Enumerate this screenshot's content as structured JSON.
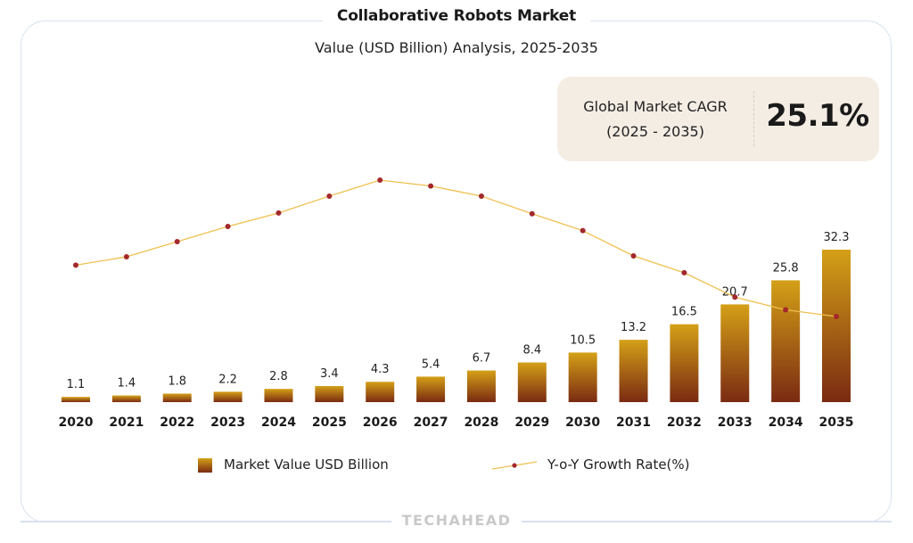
{
  "header": {
    "title": "Collaborative Robots Market",
    "subtitle": "Value (USD Billion) Analysis, 2025-2035"
  },
  "cagr_box": {
    "label_line1": "Global Market CAGR",
    "label_line2": "(2025 - 2035)",
    "value": "25.1%"
  },
  "legend": {
    "bar_label": "Market Value USD Billion",
    "line_label": "Y-o-Y Growth Rate(%)"
  },
  "footer": {
    "brand": "TECHAHEAD"
  },
  "colors": {
    "bar_top": "#d4a017",
    "bar_bottom": "#7a2a12",
    "line": "#f0c050",
    "marker": "#a3282c",
    "cagr_bg": "#f4ede4",
    "frame": "#d8e1f0"
  },
  "chart_data": {
    "type": "bar",
    "title": "Collaborative Robots Market",
    "subtitle": "Value (USD Billion) Analysis, 2025-2035",
    "xlabel": "",
    "ylabel": "",
    "grid": false,
    "legend_position": "bottom",
    "categories": [
      "2020",
      "2021",
      "2022",
      "2023",
      "2024",
      "2025",
      "2026",
      "2027",
      "2028",
      "2029",
      "2030",
      "2031",
      "2032",
      "2033",
      "2034",
      "2035"
    ],
    "series": [
      {
        "name": "Market Value USD Billion",
        "type": "bar",
        "values": [
          1.1,
          1.4,
          1.8,
          2.2,
          2.8,
          3.4,
          4.3,
          5.4,
          6.7,
          8.4,
          10.5,
          13.2,
          16.5,
          20.7,
          25.8,
          32.3
        ],
        "labels": [
          "1.1",
          "1.4",
          "1.8",
          "2.2",
          "2.8",
          "3.4",
          "4.3",
          "5.4",
          "6.7",
          "8.4",
          "10.5",
          "13.2",
          "16.5",
          "20.7",
          "25.8",
          "32.3"
        ]
      },
      {
        "name": "Y-o-Y Growth Rate(%)",
        "type": "line",
        "values": [
          19.2,
          20.2,
          22.0,
          23.8,
          25.4,
          27.4,
          29.3,
          28.6,
          27.4,
          25.3,
          23.3,
          20.3,
          18.3,
          15.4,
          13.9,
          13.1
        ],
        "note": "values estimated; no axis printed"
      }
    ],
    "ylim": [
      0,
      35
    ],
    "line_ylim": [
      0,
      35
    ]
  }
}
